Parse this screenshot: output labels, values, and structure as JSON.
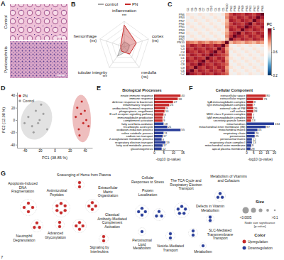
{
  "panel_a": {
    "panel": "A",
    "images": [
      "Control",
      "Pyelonephritis"
    ]
  },
  "chart_data": [
    {
      "panel": "B",
      "type": "radar",
      "categories": [
        "inflammation",
        "cortex",
        "medulla",
        "tubular integrity",
        "hemorrhage"
      ],
      "annotations": [
        "***",
        "(ns)",
        "(ns)",
        "***",
        "(ns)"
      ],
      "ylim": [
        0,
        1
      ],
      "yticks": [
        0.25,
        0.5,
        0.75,
        1
      ],
      "grid": true,
      "tick_labels": false,
      "legend": "top",
      "series": [
        {
          "name": "control",
          "color": "#a6a6a6",
          "values": [
            0.2,
            0.22,
            0.2,
            0.45,
            0.12
          ]
        },
        {
          "name": "PN",
          "color": "#c62828",
          "values": [
            0.85,
            0.5,
            0.35,
            0.2,
            0.15
          ]
        }
      ]
    },
    {
      "panel": "C",
      "type": "heatmap",
      "x": [
        "C2",
        "C6",
        "C9",
        "C8",
        "C7",
        "C1",
        "C10",
        "C4",
        "C3",
        "C5",
        "PN10",
        "PN2",
        "PN8",
        "PN4",
        "PN9",
        "PN5",
        "PN1",
        "PN7",
        "PN3",
        "PN6"
      ],
      "y": [
        "PN6",
        "PN3",
        "PN7",
        "PN1",
        "PN5",
        "PN9",
        "PN4",
        "PN8",
        "PN2",
        "PN10",
        "C5",
        "C3",
        "C4",
        "C10",
        "C1",
        "C7",
        "C8",
        "C9",
        "C6",
        "C2"
      ],
      "z": [
        [
          0.65,
          0.62,
          0.59,
          0.65,
          0.62,
          0.59,
          0.65,
          0.62,
          0.59,
          0.65,
          0.76,
          0.87,
          0.93,
          0.9,
          0.87,
          0.93,
          0.9,
          0.87,
          0.93,
          1
        ],
        [
          0.59,
          0.65,
          0.62,
          0.59,
          0.65,
          0.62,
          0.59,
          0.65,
          0.62,
          0.59,
          0.79,
          0.9,
          0.87,
          0.93,
          0.9,
          0.87,
          0.93,
          0.9,
          1,
          0.93
        ],
        [
          0.62,
          0.59,
          0.65,
          0.62,
          0.59,
          0.65,
          0.62,
          0.59,
          0.65,
          0.62,
          0.73,
          0.93,
          0.9,
          0.87,
          0.93,
          0.9,
          0.87,
          1,
          0.9,
          0.87
        ],
        [
          0.65,
          0.62,
          0.59,
          0.65,
          0.62,
          0.59,
          0.65,
          0.62,
          0.59,
          0.65,
          0.76,
          0.87,
          0.93,
          0.9,
          0.87,
          0.93,
          1,
          0.87,
          0.93,
          0.9
        ],
        [
          0.59,
          0.65,
          0.62,
          0.59,
          0.65,
          0.62,
          0.59,
          0.65,
          0.62,
          0.59,
          0.79,
          0.9,
          0.87,
          0.93,
          0.9,
          1,
          0.93,
          0.9,
          0.87,
          0.93
        ],
        [
          0.62,
          0.59,
          0.65,
          0.62,
          0.59,
          0.65,
          0.62,
          0.59,
          0.65,
          0.62,
          0.73,
          0.93,
          0.9,
          0.87,
          1,
          0.9,
          0.87,
          0.93,
          0.9,
          0.87
        ],
        [
          0.65,
          0.62,
          0.59,
          0.65,
          0.62,
          0.59,
          0.65,
          0.62,
          0.59,
          0.65,
          0.76,
          0.87,
          0.93,
          1,
          0.87,
          0.93,
          0.9,
          0.87,
          0.93,
          0.9
        ],
        [
          0.59,
          0.65,
          0.62,
          0.59,
          0.65,
          0.62,
          0.59,
          0.65,
          0.62,
          0.59,
          0.79,
          0.9,
          1,
          0.93,
          0.9,
          0.87,
          0.93,
          0.9,
          0.87,
          0.93
        ],
        [
          0.62,
          0.59,
          0.65,
          0.62,
          0.59,
          0.65,
          0.62,
          0.59,
          0.65,
          0.62,
          0.73,
          1,
          0.9,
          0.87,
          0.93,
          0.9,
          0.87,
          0.93,
          0.9,
          0.87
        ],
        [
          0.83,
          0.8,
          0.77,
          0.83,
          0.8,
          0.77,
          0.83,
          0.8,
          0.77,
          0.83,
          1,
          0.73,
          0.79,
          0.76,
          0.73,
          0.79,
          0.76,
          0.73,
          0.79,
          0.76
        ],
        [
          0.87,
          0.93,
          0.9,
          0.87,
          0.93,
          0.9,
          0.87,
          0.93,
          0.9,
          1,
          0.83,
          0.62,
          0.59,
          0.65,
          0.62,
          0.59,
          0.65,
          0.62,
          0.59,
          0.65
        ],
        [
          0.9,
          0.87,
          0.93,
          0.9,
          0.87,
          0.93,
          0.9,
          0.87,
          1,
          0.9,
          0.77,
          0.65,
          0.62,
          0.59,
          0.65,
          0.62,
          0.59,
          0.65,
          0.62,
          0.59
        ],
        [
          0.93,
          0.9,
          0.87,
          0.93,
          0.9,
          0.87,
          0.93,
          1,
          0.87,
          0.93,
          0.8,
          0.59,
          0.65,
          0.62,
          0.59,
          0.65,
          0.62,
          0.59,
          0.65,
          0.62
        ],
        [
          0.87,
          0.93,
          0.9,
          0.87,
          0.93,
          0.9,
          1,
          0.93,
          0.9,
          0.87,
          0.83,
          0.62,
          0.59,
          0.65,
          0.62,
          0.59,
          0.65,
          0.62,
          0.59,
          0.65
        ],
        [
          0.9,
          0.87,
          0.93,
          0.9,
          0.87,
          1,
          0.9,
          0.87,
          0.93,
          0.9,
          0.77,
          0.65,
          0.62,
          0.59,
          0.65,
          0.62,
          0.59,
          0.65,
          0.62,
          0.59
        ],
        [
          0.93,
          0.9,
          0.87,
          0.93,
          1,
          0.87,
          0.93,
          0.9,
          0.87,
          0.93,
          0.8,
          0.59,
          0.65,
          0.62,
          0.59,
          0.65,
          0.62,
          0.59,
          0.65,
          0.62
        ],
        [
          0.87,
          0.93,
          0.9,
          1,
          0.93,
          0.9,
          0.87,
          0.93,
          0.9,
          0.87,
          0.83,
          0.62,
          0.59,
          0.65,
          0.62,
          0.59,
          0.65,
          0.62,
          0.59,
          0.65
        ],
        [
          0.9,
          0.87,
          1,
          0.9,
          0.87,
          0.93,
          0.9,
          0.87,
          0.93,
          0.9,
          0.77,
          0.65,
          0.62,
          0.59,
          0.65,
          0.62,
          0.59,
          0.65,
          0.62,
          0.59
        ],
        [
          0.93,
          1,
          0.87,
          0.93,
          0.9,
          0.87,
          0.93,
          0.9,
          0.87,
          0.93,
          0.8,
          0.59,
          0.65,
          0.62,
          0.59,
          0.65,
          0.62,
          0.59,
          0.65,
          0.62
        ],
        [
          1,
          0.93,
          0.9,
          0.87,
          0.93,
          0.9,
          0.87,
          0.93,
          0.9,
          0.87,
          0.83,
          0.62,
          0.59,
          0.65,
          0.62,
          0.59,
          0.65,
          0.62,
          0.59,
          0.65
        ]
      ],
      "colorbar": {
        "title": "PC",
        "range": [
          0.2,
          1
        ],
        "ticks": [
          0.2,
          0.6,
          1
        ]
      }
    },
    {
      "panel": "D",
      "type": "scatter",
      "xlabel": "PC1 (38.85 %)",
      "ylabel": "PC2 (12.08 %)",
      "xlim": [
        -50,
        50
      ],
      "ylim": [
        -45,
        45
      ],
      "xticks": [
        -40,
        -20,
        0,
        20,
        40
      ],
      "yticks": [
        -40,
        -20,
        0,
        20,
        40
      ],
      "legend": "top-left",
      "series": [
        {
          "name": "PN",
          "color": "#c62828",
          "x": [
            30,
            35,
            38,
            32,
            42,
            28,
            36,
            40,
            33,
            45
          ],
          "values": [
            20,
            10,
            -5,
            -15,
            0,
            5,
            30,
            15,
            -25,
            -10
          ]
        },
        {
          "name": "Control",
          "color": "#9e9e9e",
          "x": [
            -35,
            -30,
            -25,
            -20,
            -28,
            -15,
            -22,
            -10,
            -40,
            -18
          ],
          "values": [
            5,
            -10,
            15,
            0,
            -20,
            10,
            -5,
            -15,
            -5,
            25
          ]
        }
      ]
    },
    {
      "panel": "E",
      "type": "bar",
      "orientation": "horizontal",
      "title": "Biological Processes",
      "categories": [
        "innate immune response",
        "immune response",
        "defense response to bacterium",
        "inflammatory response",
        "antibacterial humoral response",
        "phagocytosis, engulfment",
        "B cell receptor signaling pathway",
        "immunoglobulin production",
        "complement activation",
        "fatty acid beta-oxidation",
        "tricarboxylic acid cycle",
        "oxidation-reduction process",
        "valine catabolic process",
        "sodium ion transport",
        "2-oxoglutarate metabolic process",
        "respiratory electron transport",
        "fatty acid metabolic process",
        "gluconeogenesis"
      ],
      "values": [
        14,
        12.5,
        10,
        8,
        6,
        5.5,
        5,
        4.5,
        4.5,
        5,
        7,
        14,
        5,
        4.5,
        4,
        6,
        4.5,
        4
      ],
      "counts": [
        40,
        38,
        27,
        25,
        9,
        10,
        9,
        7,
        9,
        18,
        21,
        55,
        11,
        17,
        8,
        19,
        17,
        12
      ],
      "colors": [
        "#c62828",
        "#c62828",
        "#c62828",
        "#c62828",
        "#c62828",
        "#c62828",
        "#c62828",
        "#c62828",
        "#c62828",
        "#283d99",
        "#283d99",
        "#283d99",
        "#283d99",
        "#283d99",
        "#283d99",
        "#283d99",
        "#283d99",
        "#283d99"
      ],
      "xlabel": "-log10 (p-value)",
      "xlim": [
        0,
        15
      ],
      "xticks": [
        0,
        5,
        10,
        15
      ]
    },
    {
      "panel": "F",
      "type": "bar",
      "orientation": "horizontal",
      "title": "Cellular Component",
      "categories": [
        "extracellular space",
        "extracellular region",
        "IgA immunoglobulin complex",
        "IgG immunoglobulin complex",
        "external side of PM",
        "cell surface",
        "MHC class II protein complex",
        "IgM immunoglobulin complex",
        "secretory granule lumen",
        "mitochondrion",
        "mitochondrial inner membrane (IM)",
        "mitochondrial matrix",
        "respiratory chain",
        "peroxisome",
        "peroxisomal matrix",
        "respiratory chain complex I",
        "mitochondrial outer membrane",
        "apical plasma membrane"
      ],
      "values": [
        14,
        12,
        5,
        4.5,
        5,
        5,
        4,
        4,
        3.5,
        20,
        14,
        8,
        6,
        6,
        4,
        4,
        3.5,
        3
      ],
      "counts": [
        80,
        73,
        8,
        7,
        26,
        28,
        7,
        8,
        13,
        134,
        97,
        45,
        20,
        25,
        12,
        13,
        9,
        28
      ],
      "colors": [
        "#c62828",
        "#c62828",
        "#c62828",
        "#c62828",
        "#c62828",
        "#c62828",
        "#c62828",
        "#c62828",
        "#c62828",
        "#283d99",
        "#283d99",
        "#283d99",
        "#283d99",
        "#283d99",
        "#283d99",
        "#283d99",
        "#283d99",
        "#283d99"
      ],
      "xlabel": "-log10 (p-value)",
      "xlim": [
        0,
        20
      ],
      "xticks": [
        0,
        5,
        10,
        15,
        20
      ]
    }
  ],
  "network": {
    "panel": "G",
    "clusters": [
      {
        "label": [
          "Apoptosis-Induced",
          "DNA",
          "Fragmentation"
        ],
        "color": "#c62828",
        "nodes": 4
      },
      {
        "label": [
          "Neutrophil",
          "Degranulation"
        ],
        "color": "#c62828",
        "nodes": 3
      },
      {
        "label": [
          "Scavenging of Heme from Plasma"
        ],
        "color": "#c62828",
        "nodes": 2
      },
      {
        "label": [
          "Antimicrobial",
          "Peptides"
        ],
        "color": "#c62828",
        "nodes": 6
      },
      {
        "label": [
          "Extracellular",
          "Matrix",
          "Organization"
        ],
        "color": "#c62828",
        "nodes": 4
      },
      {
        "label": [
          "Advanced",
          "Glycosylation"
        ],
        "color": "#c62828",
        "nodes": 2
      },
      {
        "label": [
          "Classical",
          "Antibody-Mediated",
          "Complement",
          "Activation"
        ],
        "color": "#c62828",
        "nodes": 4
      },
      {
        "label": [
          "Signaling by",
          "Interleukins"
        ],
        "color": "#c62828",
        "nodes": 2
      },
      {
        "label": [
          "Cellular",
          "Responses to Stress"
        ],
        "color": "#283d99",
        "nodes": 4
      },
      {
        "label": [
          "Protein",
          "Localization"
        ],
        "color": "#283d99",
        "nodes": 3
      },
      {
        "label": [
          "Peroxisomal",
          "Lipid",
          "Metabolism"
        ],
        "color": "#283d99",
        "nodes": 1
      },
      {
        "label": [
          "The TCA Cycle and",
          "Respiratory Electron",
          "Transport"
        ],
        "color": "#283d99",
        "nodes": 5
      },
      {
        "label": [
          "Metabolism of Vitamins",
          "and Cofactors"
        ],
        "color": "#283d99",
        "nodes": 3
      },
      {
        "label": [
          "Defects in Vitamin",
          "Metabolism"
        ],
        "color": "#283d99",
        "nodes": 2
      },
      {
        "label": [
          "SLC-Mediated",
          "Transmembrane",
          "Transport"
        ],
        "color": "#283d99",
        "nodes": 2
      },
      {
        "label": [
          "Vesicle-Mediated",
          "Transport"
        ],
        "color": "#283d99",
        "nodes": 2
      },
      {
        "label": [
          "Metabolism"
        ],
        "color": "#283d99",
        "nodes": 1
      }
    ],
    "legend": {
      "size_title": "Size",
      "size_labels": [
        "<0.0005",
        ">0.1"
      ],
      "size_caption": [
        "Node size significance",
        "[p-value]"
      ],
      "color_title": "Color",
      "entries": [
        {
          "label": "Upregulation",
          "color": "#c62828"
        },
        {
          "label": "Downregulation",
          "color": "#283d99"
        }
      ]
    }
  },
  "footer": "7"
}
